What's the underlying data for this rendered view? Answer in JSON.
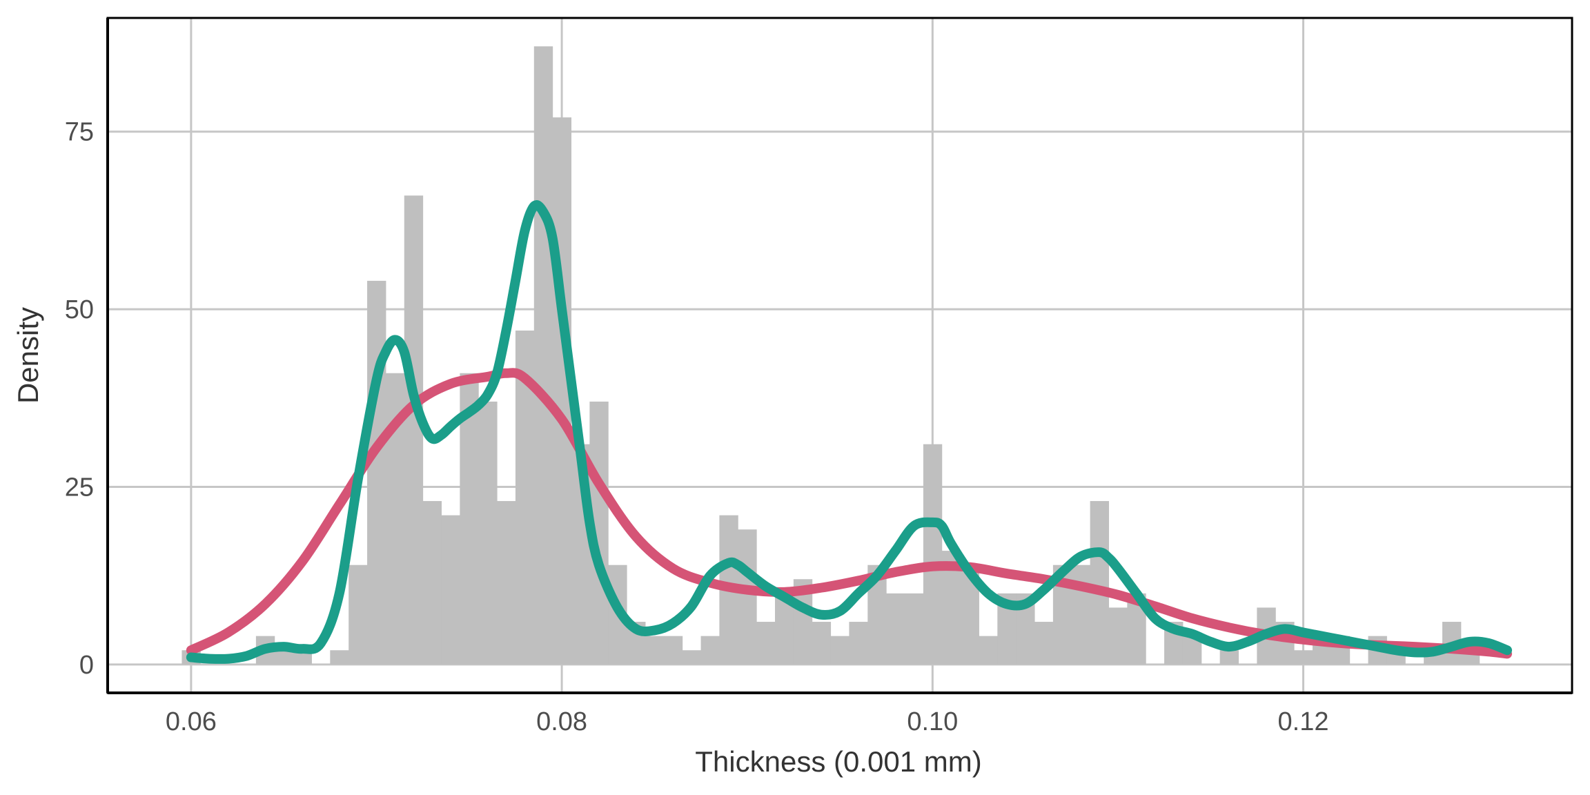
{
  "chart_data": {
    "type": "histogram",
    "title": "",
    "xlabel": "Thickness (0.001 mm)",
    "ylabel": "Density",
    "xlim": [
      0.0555,
      0.1345
    ],
    "ylim": [
      -4,
      91
    ],
    "x_ticks": [
      0.06,
      0.08,
      0.1,
      0.12
    ],
    "x_tick_labels": [
      "0.06",
      "0.08",
      "0.10",
      "0.12"
    ],
    "y_ticks": [
      0,
      25,
      50,
      75
    ],
    "y_tick_labels": [
      "0",
      "25",
      "50",
      "75"
    ],
    "grid": true,
    "legend": "none",
    "colors": {
      "bars": "#bfbfbf",
      "series_1": "#d55476",
      "series_2": "#1b9e8a",
      "grid": "#c6c6c6",
      "axis": "#000000"
    },
    "bins": {
      "start": 0.0595,
      "width": 0.001,
      "densities": [
        2,
        0,
        0,
        0,
        4,
        2,
        2,
        0,
        2,
        14,
        54,
        41,
        66,
        23,
        21,
        41,
        37,
        23,
        47,
        87,
        77,
        31,
        37,
        14,
        6,
        4,
        4,
        2,
        4,
        21,
        19,
        6,
        10,
        12,
        6,
        4,
        6,
        14,
        10,
        10,
        31,
        16,
        14,
        4,
        10,
        10,
        6,
        14,
        14,
        23,
        8,
        10,
        0,
        6,
        4,
        0,
        2,
        0,
        8,
        6,
        2,
        4,
        4,
        0,
        4,
        2,
        0,
        2,
        6,
        2
      ]
    },
    "series": [
      {
        "x": [
          0.06,
          0.062,
          0.064,
          0.066,
          0.068,
          0.07,
          0.072,
          0.074,
          0.076,
          0.077,
          0.078,
          0.08,
          0.082,
          0.084,
          0.086,
          0.088,
          0.09,
          0.092,
          0.094,
          0.096,
          0.098,
          0.1,
          0.102,
          0.104,
          0.106,
          0.108,
          0.11,
          0.112,
          0.114,
          0.116,
          0.118,
          0.12,
          0.122,
          0.124,
          0.126,
          0.128,
          0.13,
          0.131
        ],
        "y": [
          2,
          4.5,
          8.5,
          14.5,
          22.5,
          30.5,
          36.5,
          39.5,
          40.5,
          41,
          40.3,
          34.5,
          25.5,
          18,
          13.5,
          11.5,
          10.5,
          10.2,
          10.8,
          11.8,
          13,
          13.8,
          13.7,
          12.8,
          12,
          11,
          9.8,
          8.2,
          6.5,
          5.2,
          4.2,
          3.5,
          3,
          2.7,
          2.5,
          2.2,
          1.8,
          1.5
        ]
      },
      {
        "x": [
          0.06,
          0.061,
          0.062,
          0.063,
          0.064,
          0.065,
          0.066,
          0.067,
          0.068,
          0.069,
          0.07,
          0.0705,
          0.071,
          0.0715,
          0.072,
          0.0725,
          0.073,
          0.0735,
          0.074,
          0.0745,
          0.075,
          0.0755,
          0.076,
          0.0765,
          0.077,
          0.0775,
          0.078,
          0.0785,
          0.079,
          0.0795,
          0.08,
          0.0805,
          0.081,
          0.0815,
          0.082,
          0.083,
          0.084,
          0.085,
          0.086,
          0.087,
          0.088,
          0.089,
          0.0895,
          0.09,
          0.091,
          0.092,
          0.093,
          0.094,
          0.095,
          0.096,
          0.097,
          0.098,
          0.099,
          0.1,
          0.1005,
          0.101,
          0.102,
          0.103,
          0.104,
          0.105,
          0.106,
          0.107,
          0.108,
          0.109,
          0.1095,
          0.11,
          0.111,
          0.112,
          0.113,
          0.114,
          0.115,
          0.116,
          0.117,
          0.118,
          0.119,
          0.12,
          0.121,
          0.122,
          0.123,
          0.124,
          0.125,
          0.126,
          0.127,
          0.128,
          0.129,
          0.13,
          0.131
        ],
        "y": [
          1,
          0.8,
          0.8,
          1.2,
          2.2,
          2.5,
          2.2,
          3,
          10,
          26,
          40,
          44,
          45.7,
          44,
          38,
          34,
          31.8,
          32.3,
          33.5,
          34.6,
          35.5,
          36.5,
          38,
          41,
          47,
          54,
          61,
          64.5,
          63.7,
          60,
          50,
          40,
          30,
          20,
          14,
          8,
          5,
          4.8,
          5.8,
          8.2,
          12.5,
          14.3,
          14,
          13,
          11,
          9.5,
          8,
          7,
          7.5,
          10,
          12.5,
          16,
          19.5,
          20,
          19.5,
          17,
          13,
          10,
          8.5,
          8.5,
          10.5,
          13,
          15.2,
          15.8,
          15,
          13.5,
          10,
          6.5,
          5,
          4.3,
          3.2,
          2.5,
          3.2,
          4.3,
          5,
          4.5,
          4,
          3.5,
          3,
          2.5,
          2,
          1.7,
          1.8,
          2.5,
          3.2,
          3,
          2
        ]
      }
    ]
  }
}
